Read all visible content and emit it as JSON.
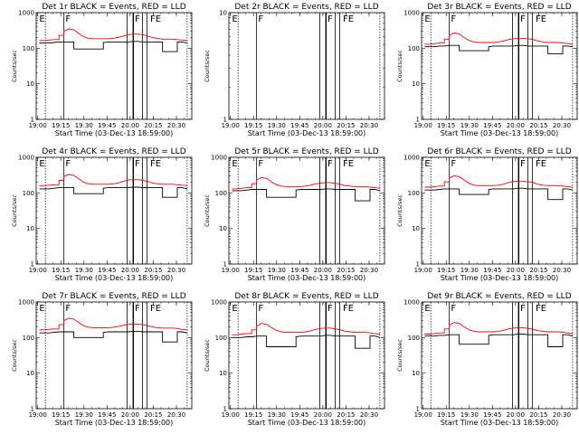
{
  "chart_data": [
    {
      "type": "line",
      "title": "Det 1r BLACK = Events, RED = LLD",
      "xlabel": "Start Time (03-Dec-13 18:59:00)",
      "ylabel": "Counts/sec",
      "ylim": [
        1,
        1000
      ],
      "yscale": "log",
      "series": [
        {
          "color": "#000000",
          "values": [
            140,
            140,
            140,
            145,
            150,
            150,
            150,
            95,
            95,
            95,
            95,
            95,
            95,
            145,
            150,
            150,
            150,
            150,
            150,
            155,
            155,
            150,
            150,
            150,
            150,
            80,
            80,
            80,
            150,
            150,
            140
          ]
        },
        {
          "color": "#ff0000",
          "values": [
            165,
            165,
            170,
            175,
            230,
            300,
            350,
            330,
            260,
            210,
            190,
            185,
            185,
            185,
            185,
            190,
            200,
            220,
            240,
            250,
            250,
            240,
            220,
            200,
            190,
            180,
            180,
            180,
            175,
            170,
            165
          ]
        }
      ],
      "markers": [
        "E",
        "F",
        "F",
        "FE"
      ],
      "empty": false
    },
    {
      "type": "line",
      "title": "Det 2r BLACK = Events, RED = LLD",
      "xlabel": "Start Time (03-Dec-13 18:59:00)",
      "ylabel": "Counts/sec",
      "ylim": [
        1,
        10
      ],
      "yscale": "log",
      "series": [],
      "markers": [
        "E",
        "F",
        "F",
        "FE"
      ],
      "empty": true
    },
    {
      "type": "line",
      "title": "Det 3r BLACK = Events, RED = LLD",
      "xlabel": "Start Time (03-Dec-13 18:59:00)",
      "ylabel": "Counts/sec",
      "ylim": [
        1,
        1000
      ],
      "yscale": "log",
      "series": [
        {
          "color": "#000000",
          "values": [
            110,
            110,
            110,
            115,
            115,
            120,
            120,
            85,
            85,
            85,
            85,
            85,
            85,
            110,
            115,
            115,
            115,
            115,
            115,
            120,
            120,
            115,
            115,
            115,
            115,
            70,
            70,
            70,
            115,
            115,
            110
          ]
        },
        {
          "color": "#ff0000",
          "values": [
            130,
            130,
            135,
            140,
            180,
            230,
            270,
            250,
            200,
            165,
            150,
            145,
            145,
            145,
            145,
            150,
            160,
            175,
            185,
            190,
            190,
            185,
            175,
            160,
            150,
            145,
            145,
            145,
            140,
            135,
            130
          ]
        }
      ],
      "markers": [
        "E",
        "F",
        "F",
        "FE"
      ],
      "empty": false
    },
    {
      "type": "line",
      "title": "Det 4r BLACK = Events, RED = LLD",
      "xlabel": "Start Time (03-Dec-13 18:59:00)",
      "ylabel": "Counts/sec",
      "ylim": [
        1,
        1000
      ],
      "yscale": "log",
      "series": [
        {
          "color": "#000000",
          "values": [
            130,
            130,
            130,
            135,
            140,
            140,
            140,
            95,
            95,
            95,
            95,
            95,
            95,
            135,
            140,
            140,
            140,
            140,
            140,
            145,
            145,
            140,
            140,
            140,
            140,
            75,
            75,
            75,
            140,
            140,
            130
          ]
        },
        {
          "color": "#ff0000",
          "values": [
            160,
            160,
            165,
            170,
            225,
            290,
            330,
            310,
            250,
            200,
            180,
            175,
            175,
            175,
            175,
            180,
            190,
            210,
            230,
            235,
            235,
            225,
            210,
            190,
            180,
            175,
            175,
            175,
            170,
            165,
            160
          ]
        }
      ],
      "markers": [
        "E",
        "F",
        "F",
        "FE"
      ],
      "empty": false
    },
    {
      "type": "line",
      "title": "Det 5r BLACK = Events, RED = LLD",
      "xlabel": "Start Time (03-Dec-13 18:59:00)",
      "ylabel": "Counts/sec",
      "ylim": [
        1,
        1000
      ],
      "yscale": "log",
      "series": [
        {
          "color": "#000000",
          "values": [
            115,
            115,
            115,
            120,
            125,
            125,
            125,
            75,
            75,
            75,
            75,
            75,
            75,
            120,
            125,
            125,
            125,
            125,
            125,
            130,
            130,
            125,
            125,
            125,
            125,
            60,
            60,
            60,
            125,
            125,
            115
          ]
        },
        {
          "color": "#ff0000",
          "values": [
            130,
            130,
            135,
            140,
            180,
            230,
            270,
            255,
            205,
            170,
            155,
            150,
            150,
            150,
            150,
            155,
            165,
            180,
            190,
            195,
            195,
            185,
            175,
            160,
            155,
            150,
            150,
            150,
            145,
            140,
            135
          ]
        }
      ],
      "markers": [
        "E",
        "F",
        "F",
        "FE"
      ],
      "empty": false
    },
    {
      "type": "line",
      "title": "Det 6r BLACK = Events, RED = LLD",
      "xlabel": "Start Time (03-Dec-13 18:59:00)",
      "ylabel": "Counts/sec",
      "ylim": [
        1,
        1000
      ],
      "yscale": "log",
      "series": [
        {
          "color": "#000000",
          "values": [
            120,
            120,
            120,
            125,
            130,
            130,
            130,
            90,
            90,
            90,
            90,
            90,
            90,
            125,
            130,
            130,
            130,
            130,
            130,
            135,
            135,
            130,
            130,
            130,
            130,
            65,
            65,
            65,
            130,
            130,
            120
          ]
        },
        {
          "color": "#ff0000",
          "values": [
            145,
            145,
            150,
            155,
            205,
            265,
            305,
            285,
            230,
            185,
            165,
            160,
            160,
            160,
            160,
            165,
            175,
            195,
            210,
            215,
            215,
            205,
            195,
            175,
            165,
            160,
            160,
            160,
            155,
            150,
            145
          ]
        }
      ],
      "markers": [
        "E",
        "F",
        "F",
        "FE"
      ],
      "empty": false
    },
    {
      "type": "line",
      "title": "Det 7r BLACK = Events, RED = LLD",
      "xlabel": "Start Time (03-Dec-13 18:59:00)",
      "ylabel": "Counts/sec",
      "ylim": [
        1,
        1000
      ],
      "yscale": "log",
      "series": [
        {
          "color": "#000000",
          "values": [
            135,
            135,
            135,
            140,
            145,
            145,
            145,
            100,
            100,
            100,
            100,
            100,
            100,
            140,
            145,
            145,
            145,
            145,
            145,
            150,
            150,
            145,
            145,
            145,
            145,
            75,
            75,
            75,
            145,
            145,
            135
          ]
        },
        {
          "color": "#ff0000",
          "values": [
            165,
            165,
            170,
            175,
            230,
            300,
            350,
            330,
            265,
            215,
            195,
            190,
            190,
            190,
            190,
            195,
            205,
            220,
            235,
            240,
            240,
            230,
            215,
            200,
            190,
            185,
            185,
            185,
            180,
            170,
            165
          ]
        }
      ],
      "markers": [
        "E",
        "F",
        "F",
        "FE"
      ],
      "empty": false
    },
    {
      "type": "line",
      "title": "Det 8r BLACK = Events, RED = LLD",
      "xlabel": "Start Time (03-Dec-13 18:59:00)",
      "ylabel": "Counts/sec",
      "ylim": [
        1,
        1000
      ],
      "yscale": "log",
      "series": [
        {
          "color": "#000000",
          "values": [
            100,
            100,
            100,
            105,
            105,
            110,
            110,
            55,
            55,
            55,
            55,
            55,
            55,
            105,
            110,
            110,
            110,
            110,
            110,
            115,
            115,
            110,
            110,
            110,
            110,
            50,
            50,
            50,
            110,
            110,
            100
          ]
        },
        {
          "color": "#ff0000",
          "values": [
            120,
            120,
            125,
            130,
            165,
            210,
            250,
            235,
            190,
            160,
            145,
            140,
            140,
            140,
            140,
            145,
            155,
            170,
            180,
            185,
            185,
            175,
            165,
            150,
            145,
            140,
            140,
            140,
            135,
            130,
            125
          ]
        }
      ],
      "markers": [
        "E",
        "F",
        "F",
        "FE"
      ],
      "empty": false
    },
    {
      "type": "line",
      "title": "Det 9r BLACK = Events, RED = LLD",
      "xlabel": "Start Time (03-Dec-13 18:59:00)",
      "ylabel": "Counts/sec",
      "ylim": [
        1,
        1000
      ],
      "yscale": "log",
      "series": [
        {
          "color": "#000000",
          "values": [
            110,
            110,
            110,
            115,
            115,
            120,
            120,
            65,
            65,
            65,
            65,
            65,
            65,
            115,
            120,
            120,
            120,
            120,
            120,
            125,
            125,
            120,
            120,
            120,
            120,
            55,
            55,
            55,
            120,
            120,
            110
          ]
        },
        {
          "color": "#ff0000",
          "values": [
            125,
            125,
            130,
            135,
            175,
            225,
            265,
            250,
            200,
            165,
            150,
            145,
            145,
            145,
            145,
            150,
            160,
            175,
            185,
            190,
            190,
            180,
            170,
            155,
            150,
            145,
            145,
            145,
            140,
            135,
            130
          ]
        }
      ],
      "markers": [
        "E",
        "F",
        "F",
        "FE"
      ],
      "empty": false
    }
  ],
  "x_ticks": [
    "19:00",
    "19:15",
    "19:30",
    "19:45",
    "20:00",
    "20:15",
    "20:30"
  ],
  "y_ticks_full": [
    "1",
    "10",
    "100",
    "1000"
  ],
  "y_ticks_empty": [
    "1",
    "10"
  ]
}
